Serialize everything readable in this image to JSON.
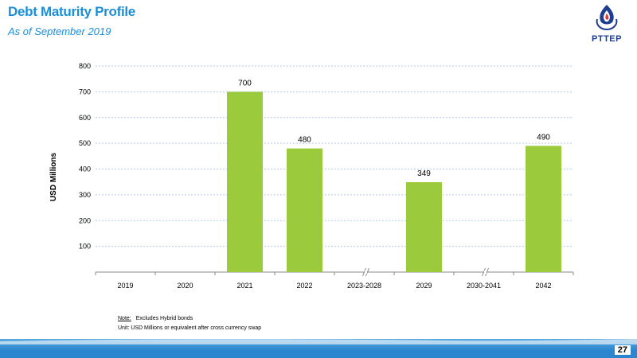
{
  "header": {
    "title": "Debt Maturity Profile",
    "subtitle": "As of September 2019",
    "logo_text": "PTTEP"
  },
  "colors": {
    "accent": "#1a8fd8",
    "bar": "#9bcb3c",
    "grid": "#b4cdea",
    "logo": "#1d3e8f"
  },
  "chart_data": {
    "type": "bar",
    "categories": [
      "2019",
      "2020",
      "2021",
      "2022",
      "2023-2028",
      "2029",
      "2030-2041",
      "2042"
    ],
    "values": [
      0,
      0,
      700,
      480,
      0,
      349,
      0,
      490
    ],
    "data_labels": [
      "",
      "",
      "700",
      "480",
      "",
      "349",
      "",
      "490"
    ],
    "axis_breaks": [
      "2023-2028",
      "2030-2041"
    ],
    "ylabel": "USD Millions",
    "yticks": [
      100,
      200,
      300,
      400,
      500,
      600,
      700,
      800
    ],
    "ylim": [
      0,
      800
    ],
    "grid": true
  },
  "notes": {
    "label": "Note:",
    "text": "Excludes Hybrid bonds",
    "unit": "Unit: USD Millions or equivalent after cross currency swap"
  },
  "page_number": "27"
}
